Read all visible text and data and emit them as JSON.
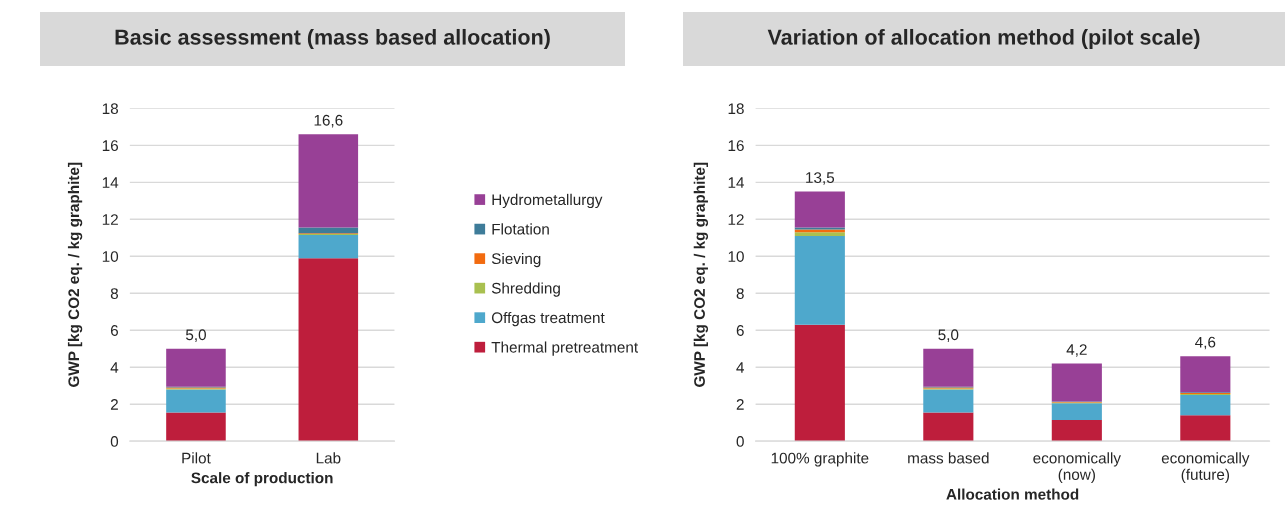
{
  "chart_data": [
    {
      "type": "bar",
      "title": "Basic assessment (mass based allocation)",
      "xlabel": "Scale of production",
      "ylabel": "GWP [kg CO2 eq. / kg graphite]",
      "categories": [
        "Pilot",
        "Lab"
      ],
      "stacked": true,
      "ylim": [
        0,
        18
      ],
      "yticks": [
        0,
        2,
        4,
        6,
        8,
        10,
        12,
        14,
        16,
        18
      ],
      "grid": "y",
      "legend": "right",
      "totals": [
        "5,0",
        "16,6"
      ],
      "series": [
        {
          "name": "Thermal pretreatment",
          "color": "#be1e3c",
          "values": [
            1.55,
            9.9
          ]
        },
        {
          "name": "Offgas treatment",
          "color": "#4ea8cc",
          "values": [
            1.25,
            1.25
          ]
        },
        {
          "name": "Shredding",
          "color": "#a9c050",
          "values": [
            0.05,
            0.05
          ]
        },
        {
          "name": "Sieving",
          "color": "#f26b0f",
          "values": [
            0.05,
            0.05
          ]
        },
        {
          "name": "Flotation",
          "color": "#3e7c99",
          "values": [
            0.05,
            0.3
          ]
        },
        {
          "name": "Hydrometallurgy",
          "color": "#984096",
          "values": [
            2.05,
            5.05
          ]
        }
      ]
    },
    {
      "type": "bar",
      "title": "Variation of allocation method (pilot scale)",
      "xlabel": "Allocation method",
      "ylabel": "GWP [kg CO2 eq. / kg graphite]",
      "categories": [
        "100% graphite",
        "mass based",
        "economically\n(now)",
        "economically\n(future)"
      ],
      "stacked": true,
      "ylim": [
        0,
        18
      ],
      "yticks": [
        0,
        2,
        4,
        6,
        8,
        10,
        12,
        14,
        16,
        18
      ],
      "grid": "y",
      "totals": [
        "13,5",
        "5,0",
        "4,2",
        "4,6"
      ],
      "series": [
        {
          "color": "#be1e3c",
          "values": [
            6.3,
            1.55,
            1.15,
            1.4
          ]
        },
        {
          "color": "#4ea8cc",
          "values": [
            4.8,
            1.25,
            0.9,
            1.1
          ]
        },
        {
          "color": "#a9c050",
          "values": [
            0.2,
            0.05,
            0.04,
            0.05
          ]
        },
        {
          "color": "#f26b0f",
          "values": [
            0.15,
            0.05,
            0.03,
            0.05
          ]
        },
        {
          "color": "#3e7c99",
          "values": [
            0.1,
            0.05,
            0.03,
            0.05
          ]
        },
        {
          "color": "#984096",
          "values": [
            1.95,
            2.05,
            2.05,
            1.95
          ]
        }
      ]
    }
  ]
}
